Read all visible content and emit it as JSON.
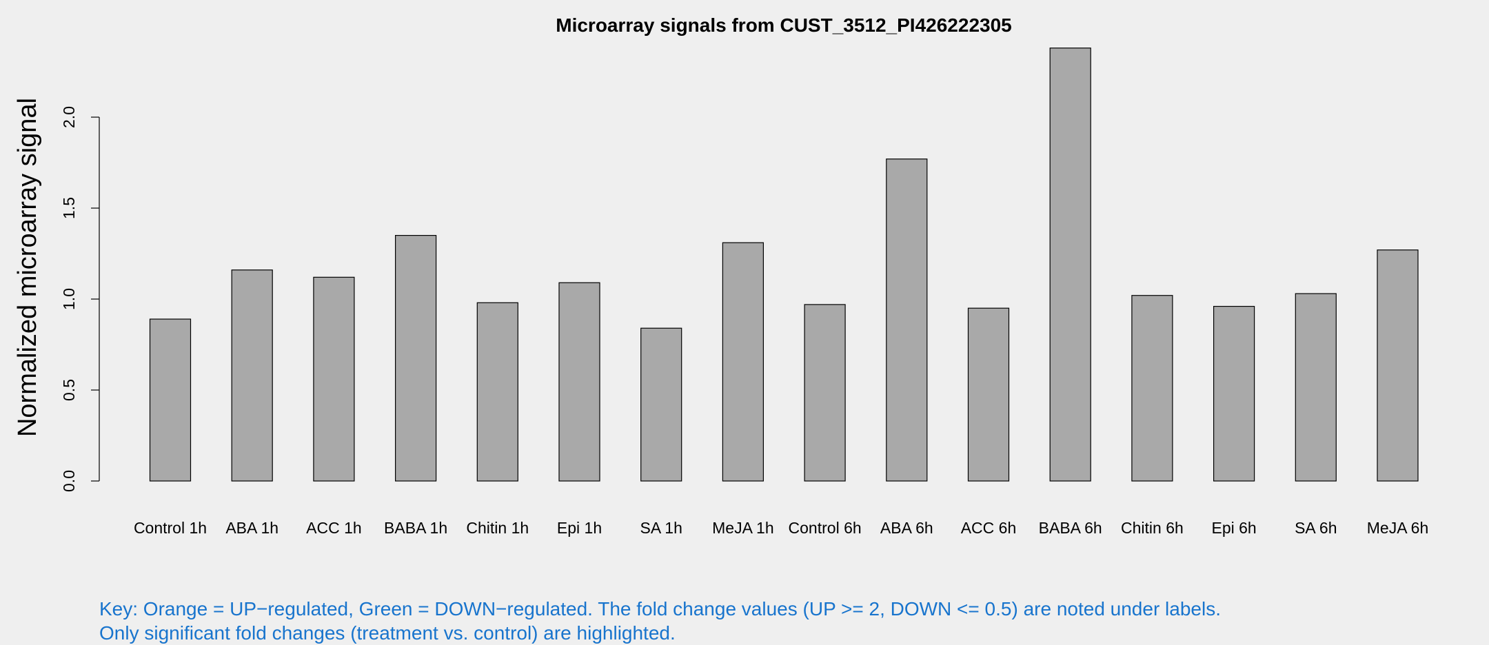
{
  "chart_data": {
    "type": "bar",
    "title": "Microarray signals from CUST_3512_PI426222305",
    "xlabel": "",
    "ylabel": "Normalized microarray signal",
    "ylim": [
      0,
      2.4
    ],
    "yticks": [
      "0.0",
      "0.5",
      "1.0",
      "1.5",
      "2.0"
    ],
    "grid": false,
    "bar_color": "#a9a9a9",
    "categories": [
      "Control 1h",
      "ABA 1h",
      "ACC 1h",
      "BABA 1h",
      "Chitin 1h",
      "Epi 1h",
      "SA 1h",
      "MeJA 1h",
      "Control 6h",
      "ABA 6h",
      "ACC 6h",
      "BABA 6h",
      "Chitin 6h",
      "Epi 6h",
      "SA 6h",
      "MeJA 6h"
    ],
    "values": [
      0.89,
      1.16,
      1.12,
      1.35,
      0.98,
      1.09,
      0.84,
      1.31,
      0.97,
      1.77,
      0.95,
      2.38,
      1.02,
      0.96,
      1.03,
      1.27
    ]
  },
  "key": {
    "color": "#1874cd",
    "line1": "Key: Orange = UP−regulated, Green = DOWN−regulated. The fold change values (UP >= 2, DOWN <= 0.5) are noted under labels.",
    "line2": "Only significant fold changes (treatment vs. control) are highlighted."
  }
}
